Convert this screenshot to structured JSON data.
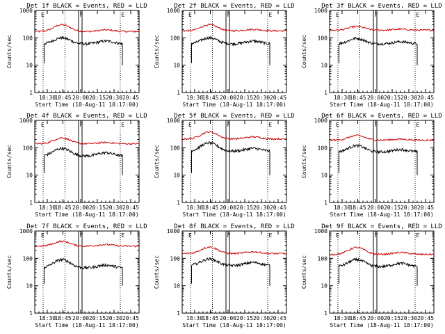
{
  "common": {
    "xlabel": "Start Time (18-Aug-11 18:17:00)",
    "ylabel": "Counts/sec",
    "x_ticks": [
      "18:30",
      "18:45",
      "20:00",
      "20:15",
      "20:30",
      "20:45"
    ],
    "y_ticks": [
      "1",
      "10",
      "100",
      "1000"
    ],
    "ylim": [
      1,
      1000
    ],
    "y_scale": "log",
    "marker_labels": [
      "E",
      "F",
      "E"
    ]
  },
  "chart_data": [
    {
      "type": "line",
      "title": "Det 1f BLACK = Events, RED = LLD",
      "series": [
        {
          "color": "#cc0000",
          "base": 170,
          "peak": 300,
          "hump2": 200
        },
        {
          "color": "#000000",
          "base": 60,
          "peak": 100,
          "hump2": 80
        }
      ]
    },
    {
      "type": "line",
      "title": "Det 2f BLACK = Events, RED = LLD",
      "series": [
        {
          "color": "#cc0000",
          "base": 180,
          "peak": 300,
          "hump2": 210
        },
        {
          "color": "#000000",
          "base": 60,
          "peak": 100,
          "hump2": 80
        }
      ]
    },
    {
      "type": "line",
      "title": "Det 3f BLACK = Events, RED = LLD",
      "series": [
        {
          "color": "#cc0000",
          "base": 190,
          "peak": 260,
          "hump2": 210
        },
        {
          "color": "#000000",
          "base": 60,
          "peak": 95,
          "hump2": 75
        }
      ]
    },
    {
      "type": "line",
      "title": "Det 4f BLACK = Events, RED = LLD",
      "series": [
        {
          "color": "#cc0000",
          "base": 140,
          "peak": 230,
          "hump2": 160
        },
        {
          "color": "#000000",
          "base": 50,
          "peak": 95,
          "hump2": 70
        }
      ]
    },
    {
      "type": "line",
      "title": "Det 5f BLACK = Events, RED = LLD",
      "series": [
        {
          "color": "#cc0000",
          "base": 210,
          "peak": 380,
          "hump2": 260
        },
        {
          "color": "#000000",
          "base": 75,
          "peak": 150,
          "hump2": 100
        }
      ]
    },
    {
      "type": "line",
      "title": "Det 6f BLACK = Events, RED = LLD",
      "series": [
        {
          "color": "#cc0000",
          "base": 190,
          "peak": 280,
          "hump2": 210
        },
        {
          "color": "#000000",
          "base": 70,
          "peak": 120,
          "hump2": 90
        }
      ]
    },
    {
      "type": "line",
      "title": "Det 7f BLACK = Events, RED = LLD",
      "series": [
        {
          "color": "#cc0000",
          "base": 280,
          "peak": 420,
          "hump2": 330
        },
        {
          "color": "#000000",
          "base": 45,
          "peak": 90,
          "hump2": 60
        }
      ]
    },
    {
      "type": "line",
      "title": "Det 8f BLACK = Events, RED = LLD",
      "series": [
        {
          "color": "#cc0000",
          "base": 150,
          "peak": 260,
          "hump2": 180
        },
        {
          "color": "#000000",
          "base": 55,
          "peak": 95,
          "hump2": 75
        }
      ]
    },
    {
      "type": "line",
      "title": "Det 9f BLACK = Events, RED = LLD",
      "series": [
        {
          "color": "#cc0000",
          "base": 140,
          "peak": 250,
          "hump2": 170
        },
        {
          "color": "#000000",
          "base": 50,
          "peak": 90,
          "hump2": 70
        }
      ]
    }
  ]
}
